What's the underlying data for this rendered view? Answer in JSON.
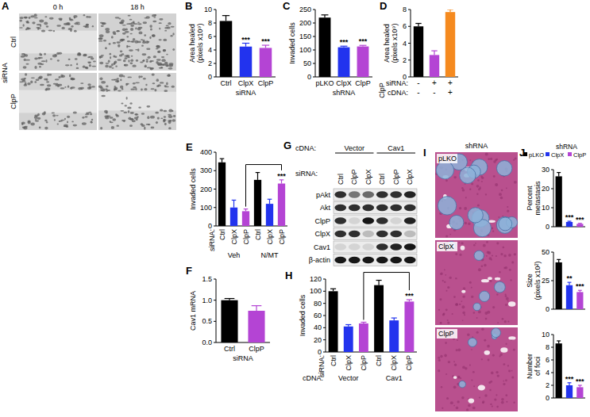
{
  "chart_data": [
    {
      "type": "bar",
      "title": "B",
      "y_label": [
        "Area healed",
        "(pixels x10⁹)"
      ],
      "categories": [
        "Ctrl",
        "ClpX",
        "ClpP"
      ],
      "x_label": "siRNA",
      "values": [
        8.3,
        4.5,
        4.3
      ],
      "errors": [
        0.8,
        0.5,
        0.4
      ],
      "colors": [
        "#000000",
        "#2233ee",
        "#b444d4"
      ],
      "ylim": [
        0,
        10
      ],
      "yticks": [
        0,
        2,
        4,
        6,
        8,
        10
      ],
      "annotations": [
        {
          "index": 1,
          "text": "***"
        },
        {
          "index": 2,
          "text": "***"
        }
      ]
    },
    {
      "type": "bar",
      "title": "C",
      "y_label": "Invaded cells",
      "categories": [
        "pLKO",
        "ClpX",
        "ClpP"
      ],
      "x_label": "shRNA",
      "values": [
        220,
        110,
        113
      ],
      "errors": [
        10,
        4,
        4
      ],
      "colors": [
        "#000000",
        "#2233ee",
        "#b444d4"
      ],
      "ylim": [
        0,
        250
      ],
      "yticks": [
        0,
        50,
        100,
        150,
        200,
        250
      ],
      "annotations": [
        {
          "index": 1,
          "text": "***"
        },
        {
          "index": 2,
          "text": "***"
        }
      ]
    },
    {
      "type": "bar",
      "title": "D",
      "y_label": [
        "Area healed",
        "(pixels x10⁹)"
      ],
      "categories": [
        null,
        null,
        null
      ],
      "values": [
        6.0,
        2.6,
        7.7
      ],
      "errors": [
        0.35,
        0.5,
        0.3
      ],
      "colors": [
        "#000000",
        "#b444d4",
        "#f58a1f"
      ],
      "ylim": [
        0,
        8
      ],
      "yticks": [
        0,
        2,
        4,
        6,
        8
      ],
      "table_title": "ClpP",
      "table": [
        {
          "label": "siRNA:",
          "cells": [
            "-",
            "+",
            "+"
          ]
        },
        {
          "label": "cDNA:",
          "cells": [
            "-",
            "-",
            "+"
          ]
        }
      ]
    },
    {
      "type": "bar",
      "title": "E",
      "y_label": "Invaded cells",
      "categories": [
        "Ctrl",
        "ClpX",
        "ClpP",
        "Ctrl",
        "ClpX",
        "ClpP"
      ],
      "x_label": "siRNA:",
      "group_labels": [
        "Veh",
        "N/MT"
      ],
      "values": [
        345,
        100,
        80,
        250,
        120,
        230
      ],
      "errors": [
        20,
        40,
        12,
        40,
        25,
        20
      ],
      "colors": [
        "#000000",
        "#2233ee",
        "#b444d4",
        "#000000",
        "#2233ee",
        "#b444d4"
      ],
      "ylim": [
        0,
        400
      ],
      "yticks": [
        0,
        100,
        200,
        300,
        400
      ],
      "comparisons": [
        {
          "from": 2,
          "to": 5,
          "text": "***"
        }
      ]
    },
    {
      "type": "bar",
      "title": "F",
      "y_label": "Cav1 mRNA",
      "categories": [
        "Ctrl",
        "ClpP"
      ],
      "x_label": "siRNA",
      "values": [
        1.0,
        0.75
      ],
      "errors": [
        0.04,
        0.12
      ],
      "colors": [
        "#000000",
        "#b444d4"
      ],
      "ylim": [
        0,
        1.5
      ],
      "yticks": [
        {
          "value": 0,
          "label": "0.0"
        },
        0.5,
        {
          "value": 1,
          "label": "1.0"
        },
        1.5
      ]
    },
    {
      "type": "bar",
      "title": "H",
      "y_label": "Invaded cells",
      "categories": [
        "Ctrl",
        "ClpX",
        "ClpP",
        "Ctrl",
        "ClpX",
        "ClpP"
      ],
      "x_label": "siRNA:",
      "group_title": "cDNA:",
      "group_labels": [
        "Vector",
        "Cav1"
      ],
      "values": [
        100,
        42,
        47,
        110,
        52,
        83
      ],
      "errors": [
        4,
        3,
        2,
        8,
        4,
        3
      ],
      "colors": [
        "#000000",
        "#2233ee",
        "#b444d4",
        "#000000",
        "#2233ee",
        "#b444d4"
      ],
      "ylim": [
        0,
        120
      ],
      "yticks": [
        0,
        20,
        40,
        60,
        80,
        100,
        120
      ],
      "comparisons": [
        {
          "from": 2,
          "to": 5,
          "text": "***"
        }
      ]
    },
    {
      "type": "bar",
      "title": "J",
      "legend": "top",
      "legend_title": "shRNA",
      "tick_labels": "y",
      "y_label": [
        "Percent",
        "metastasis"
      ],
      "categories": [
        "pLKO",
        "ClpX",
        "ClpP"
      ],
      "values": [
        26.5,
        2.5,
        1.5
      ],
      "errors": [
        2,
        0.4,
        0.3
      ],
      "colors": [
        "#000000",
        "#2233ee",
        "#b444d4"
      ],
      "ylim": [
        0,
        30
      ],
      "yticks": [
        0,
        10,
        20,
        30
      ],
      "annotations": [
        {
          "index": 1,
          "text": "***"
        },
        {
          "index": 2,
          "text": "***"
        }
      ]
    },
    {
      "type": "bar",
      "tick_labels": "y",
      "y_label": [
        "Size",
        "(pixels x10²)"
      ],
      "values": [
        41,
        21,
        15
      ],
      "errors": [
        2.5,
        2.5,
        1.5
      ],
      "colors": [
        "#000000",
        "#2233ee",
        "#b444d4"
      ],
      "ylim": [
        0,
        50
      ],
      "yticks": [
        0,
        25,
        50
      ],
      "annotations": [
        {
          "index": 1,
          "text": "**"
        },
        {
          "index": 2,
          "text": "***"
        }
      ]
    },
    {
      "type": "bar",
      "tick_labels": "y",
      "y_label": [
        "Number",
        "of foci"
      ],
      "values": [
        8.6,
        2.0,
        1.7
      ],
      "errors": [
        0.4,
        0.4,
        0.3
      ],
      "colors": [
        "#000000",
        "#2233ee",
        "#b444d4"
      ],
      "ylim": [
        0,
        10
      ],
      "yticks": [
        0,
        2,
        4,
        6,
        8,
        10
      ],
      "annotations": [
        {
          "index": 1,
          "text": "***"
        },
        {
          "index": 2,
          "text": "***"
        }
      ]
    }
  ],
  "images": [
    {
      "panel": "A",
      "columns": [
        "0 h",
        "18 h"
      ],
      "row_title": "siRNA",
      "rows": [
        "Ctrl",
        "ClpP"
      ]
    },
    {
      "panel": "I",
      "title": "shRNA",
      "rows": [
        "pLKO",
        "ClpX",
        "ClpP"
      ]
    }
  ],
  "blot": {
    "panel": "G",
    "cdna_title": "cDNA:",
    "cdna_groups": [
      "Vector",
      "Cav1"
    ],
    "sirna_title": "siRNA:",
    "lanes": [
      "Ctrl",
      "ClpP",
      "ClpX",
      "Ctrl",
      "ClpP",
      "ClpX"
    ],
    "rows": [
      "pAkt",
      "Akt",
      "ClpP",
      "ClpX",
      "Cav1",
      "β-actin"
    ],
    "band_intensity": [
      [
        0.8,
        0.5,
        0.55,
        0.8,
        0.8,
        0.85
      ],
      [
        0.8,
        0.8,
        0.8,
        0.8,
        0.8,
        0.8
      ],
      [
        0.8,
        0.1,
        0.9,
        0.8,
        0.1,
        0.85
      ],
      [
        0.8,
        0.8,
        0.2,
        0.8,
        0.8,
        0.2
      ],
      [
        0.1,
        0.1,
        0.1,
        0.8,
        0.85,
        0.9
      ],
      [
        0.9,
        0.9,
        0.9,
        0.9,
        0.9,
        0.9
      ]
    ]
  }
}
